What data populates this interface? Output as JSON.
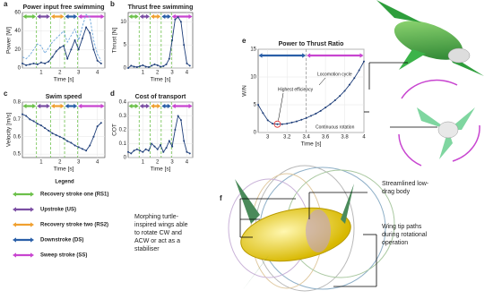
{
  "chart_data": [
    {
      "type": "line",
      "panel": "a",
      "title": "Power input free swimming",
      "xlabel": "Time [s]",
      "ylabel": "Power [W]",
      "xlim": [
        0,
        4.4
      ],
      "ylim": [
        0,
        60
      ],
      "xticks": [
        1,
        2,
        3,
        4
      ],
      "yticks": [
        0,
        20,
        40,
        60
      ],
      "x": [
        0,
        0.2,
        0.4,
        0.6,
        0.8,
        1.0,
        1.2,
        1.4,
        1.6,
        1.8,
        2.0,
        2.2,
        2.4,
        2.6,
        2.8,
        3.0,
        3.2,
        3.4,
        3.6,
        3.8,
        4.0,
        4.2
      ],
      "series": [
        {
          "color": "#1f3f7a",
          "style": "solid",
          "values": [
            5,
            3,
            4,
            5,
            4,
            6,
            5,
            7,
            12,
            18,
            22,
            24,
            10,
            20,
            30,
            20,
            32,
            44,
            38,
            20,
            8,
            5
          ]
        },
        {
          "color": "#6fa8dc",
          "style": "dashed",
          "values": [
            12,
            10,
            14,
            20,
            26,
            24,
            16,
            22,
            28,
            32,
            36,
            40,
            28,
            35,
            42,
            30,
            45,
            58,
            55,
            30,
            15,
            8
          ]
        }
      ],
      "phase_bounds": [
        0,
        0.75,
        1.5,
        2.25,
        2.95,
        4.4
      ],
      "phase_colors": [
        "#6cc04a",
        "#7b4ea3",
        "#f0a030",
        "#2a5fa8",
        "#c845d0"
      ],
      "phase_line_color": "#6cc04a"
    },
    {
      "type": "line",
      "panel": "b",
      "title": "Thrust free swimming",
      "xlabel": "Time [s]",
      "ylabel": "Thrust [N]",
      "xlim": [
        0,
        4.4
      ],
      "ylim": [
        0,
        12
      ],
      "xticks": [
        1,
        2,
        3,
        4
      ],
      "yticks": [
        0,
        5,
        10
      ],
      "x": [
        0,
        0.2,
        0.4,
        0.6,
        0.8,
        1.0,
        1.2,
        1.4,
        1.6,
        1.8,
        2.0,
        2.2,
        2.4,
        2.6,
        2.8,
        3.0,
        3.2,
        3.4,
        3.6,
        3.8,
        4.0,
        4.2
      ],
      "series": [
        {
          "color": "#1f3f7a",
          "style": "solid",
          "values": [
            0,
            0.5,
            0.3,
            0.2,
            0.4,
            0.6,
            0.3,
            0.2,
            0.5,
            0.8,
            0.6,
            0.3,
            0.4,
            0.8,
            2,
            6,
            10.5,
            11,
            10,
            5,
            1,
            0.5
          ]
        }
      ],
      "phase_bounds": [
        0,
        0.75,
        1.5,
        2.25,
        2.95,
        4.4
      ],
      "phase_colors": [
        "#6cc04a",
        "#7b4ea3",
        "#f0a030",
        "#2a5fa8",
        "#c845d0"
      ],
      "phase_line_color": "#6cc04a"
    },
    {
      "type": "line",
      "panel": "c",
      "title": "Swim speed",
      "xlabel": "Time [s]",
      "ylabel": "Velocity [m/s]",
      "xlim": [
        0,
        4.4
      ],
      "ylim": [
        0.48,
        0.8
      ],
      "xticks": [
        1,
        2,
        3,
        4
      ],
      "yticks": [
        0.5,
        0.6,
        0.7,
        0.8
      ],
      "x": [
        0,
        0.2,
        0.4,
        0.6,
        0.8,
        1.0,
        1.2,
        1.4,
        1.6,
        1.8,
        2.0,
        2.2,
        2.4,
        2.6,
        2.8,
        3.0,
        3.2,
        3.4,
        3.6,
        3.8,
        4.0,
        4.2
      ],
      "series": [
        {
          "color": "#1f3f7a",
          "style": "solid",
          "values": [
            0.73,
            0.72,
            0.7,
            0.69,
            0.675,
            0.665,
            0.65,
            0.635,
            0.62,
            0.61,
            0.6,
            0.59,
            0.575,
            0.565,
            0.55,
            0.54,
            0.53,
            0.52,
            0.55,
            0.6,
            0.66,
            0.68
          ]
        }
      ],
      "phase_bounds": [
        0,
        0.75,
        1.5,
        2.25,
        2.95,
        4.4
      ],
      "phase_colors": [
        "#6cc04a",
        "#7b4ea3",
        "#f0a030",
        "#2a5fa8",
        "#c845d0"
      ],
      "phase_line_color": "#6cc04a"
    },
    {
      "type": "line",
      "panel": "d",
      "title": "Cost of transport",
      "xlabel": "Time [s]",
      "ylabel": "COT",
      "xlim": [
        0,
        4.4
      ],
      "ylim": [
        0,
        0.4
      ],
      "xticks": [
        1,
        2,
        3,
        4
      ],
      "yticks": [
        0,
        0.1,
        0.2,
        0.3,
        0.4
      ],
      "x": [
        0,
        0.2,
        0.4,
        0.6,
        0.8,
        1.0,
        1.2,
        1.4,
        1.6,
        1.8,
        2.0,
        2.2,
        2.4,
        2.6,
        2.8,
        3.0,
        3.2,
        3.4,
        3.6,
        3.8,
        4.0,
        4.2
      ],
      "series": [
        {
          "color": "#1f3f7a",
          "style": "solid",
          "values": [
            0.04,
            0.03,
            0.05,
            0.06,
            0.05,
            0.04,
            0.06,
            0.05,
            0.1,
            0.08,
            0.06,
            0.09,
            0.04,
            0.07,
            0.12,
            0.08,
            0.2,
            0.3,
            0.27,
            0.12,
            0.04,
            0.03
          ]
        }
      ],
      "phase_bounds": [
        0,
        0.75,
        1.5,
        2.25,
        2.95,
        4.4
      ],
      "phase_colors": [
        "#6cc04a",
        "#7b4ea3",
        "#f0a030",
        "#2a5fa8",
        "#c845d0"
      ],
      "phase_line_color": "#6cc04a"
    },
    {
      "type": "line",
      "panel": "e",
      "title": "Power to Thrust Ratio",
      "xlabel": "Time [s]",
      "ylabel": "W/N",
      "xlim": [
        2.9,
        4
      ],
      "ylim": [
        0,
        15
      ],
      "xticks": [
        3,
        3.2,
        3.4,
        3.6,
        3.8,
        4
      ],
      "yticks": [
        0,
        5,
        10,
        15
      ],
      "x": [
        2.9,
        2.95,
        3.0,
        3.05,
        3.1,
        3.15,
        3.2,
        3.25,
        3.3,
        3.35,
        3.4,
        3.45,
        3.5,
        3.55,
        3.6,
        3.65,
        3.7,
        3.75,
        3.8,
        3.85,
        3.9,
        3.95,
        4.0
      ],
      "series": [
        {
          "color": "#1f3f7a",
          "style": "solid",
          "values": [
            5,
            3.5,
            2.2,
            1.6,
            1.5,
            1.5,
            1.6,
            1.8,
            2.0,
            2.3,
            2.6,
            3.0,
            3.4,
            3.9,
            4.5,
            5.1,
            5.8,
            6.6,
            7.5,
            8.6,
            9.8,
            11.2,
            12.8
          ]
        }
      ],
      "phase_bounds": [
        2.9,
        3.4,
        4
      ],
      "phase_colors": [
        "#2a5fa8",
        "#c845d0"
      ],
      "phase_line_color": "#999999",
      "annotations": [
        "Highest efficiency",
        "Locomotion cycle",
        "Continuous rotation"
      ]
    }
  ],
  "legend": {
    "title": "Legend",
    "items": [
      {
        "label": "Recovery stroke one (RS1)",
        "color": "#6cc04a"
      },
      {
        "label": "Upstroke (US)",
        "color": "#7b4ea3"
      },
      {
        "label": "Recovery stroke two (RS2)",
        "color": "#f0a030"
      },
      {
        "label": "Downstroke (DS)",
        "color": "#2a5fa8"
      },
      {
        "label": "Sweep stroke (SS)",
        "color": "#c845d0"
      }
    ]
  },
  "figure_f": {
    "panel": "f",
    "labels": [
      [
        "Morphing turtle-",
        "inspired wings able",
        "to rotate CW and",
        "ACW or act as a",
        "stabiliser"
      ],
      [
        "Streamlined low-",
        "drag body"
      ],
      [
        "Wing tip paths",
        "during rotational",
        "operation"
      ]
    ]
  }
}
